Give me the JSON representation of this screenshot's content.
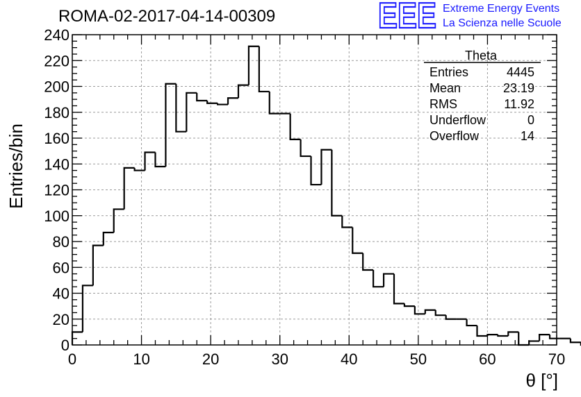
{
  "chart_data": {
    "type": "histogram",
    "title": "ROMA-02-2017-04-14-00309",
    "xlabel": "θ [°]",
    "ylabel": "Entries/bin",
    "xlim": [
      0,
      70
    ],
    "ylim": [
      0,
      240
    ],
    "grid": true,
    "x_ticks": [
      "0",
      "10",
      "20",
      "30",
      "40",
      "50",
      "60",
      "70"
    ],
    "y_ticks": [
      "0",
      "20",
      "40",
      "60",
      "80",
      "100",
      "120",
      "140",
      "160",
      "180",
      "200",
      "220",
      "240"
    ],
    "bin_edges_start": 0,
    "bin_width": 1.5,
    "values": [
      10,
      46,
      77,
      87,
      105,
      137,
      135,
      149,
      138,
      202,
      165,
      195,
      189,
      187,
      186,
      191,
      201,
      231,
      196,
      179,
      179,
      159,
      146,
      124,
      151,
      100,
      91,
      71,
      58,
      45,
      55,
      32,
      30,
      24,
      27,
      23,
      20,
      20,
      15,
      7,
      8,
      7,
      10,
      0,
      3,
      8,
      5,
      5,
      2,
      0
    ]
  },
  "stats_box": {
    "title": "Theta",
    "rows": [
      {
        "label": "Entries",
        "value": "4445"
      },
      {
        "label": "Mean",
        "value": "23.19"
      },
      {
        "label": "RMS",
        "value": "11.92"
      },
      {
        "label": "Underflow",
        "value": "0"
      },
      {
        "label": "Overflow",
        "value": "14"
      }
    ]
  },
  "logo": {
    "mark": "EEE",
    "line1": "Extreme Energy Events",
    "line2": "La Scienza nelle Scuole",
    "color": "#1a1aff"
  }
}
